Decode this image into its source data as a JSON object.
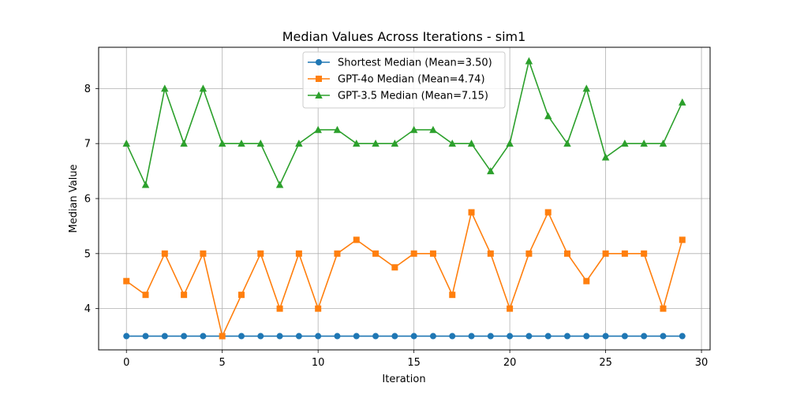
{
  "chart_data": {
    "type": "line",
    "title": "Median Values Across Iterations - sim1",
    "xlabel": "Iteration",
    "ylabel": "Median Value",
    "xlim": [
      -1.45,
      30.45
    ],
    "ylim": [
      3.25,
      8.75
    ],
    "xticks": [
      0,
      5,
      10,
      15,
      20,
      25,
      30
    ],
    "yticks": [
      4,
      5,
      6,
      7,
      8
    ],
    "grid": true,
    "legend_position": "top-center",
    "x": [
      0,
      1,
      2,
      3,
      4,
      5,
      6,
      7,
      8,
      9,
      10,
      11,
      12,
      13,
      14,
      15,
      16,
      17,
      18,
      19,
      20,
      21,
      22,
      23,
      24,
      25,
      26,
      27,
      28,
      29
    ],
    "series": [
      {
        "name": "Shortest Median (Mean=3.50)",
        "color": "#1f77b4",
        "marker": "circle",
        "values": [
          3.5,
          3.5,
          3.5,
          3.5,
          3.5,
          3.5,
          3.5,
          3.5,
          3.5,
          3.5,
          3.5,
          3.5,
          3.5,
          3.5,
          3.5,
          3.5,
          3.5,
          3.5,
          3.5,
          3.5,
          3.5,
          3.5,
          3.5,
          3.5,
          3.5,
          3.5,
          3.5,
          3.5,
          3.5,
          3.5
        ]
      },
      {
        "name": "GPT-4o Median (Mean=4.74)",
        "color": "#ff7f0e",
        "marker": "square",
        "values": [
          4.5,
          4.25,
          5.0,
          4.25,
          5.0,
          3.5,
          4.25,
          5.0,
          4.0,
          5.0,
          4.0,
          5.0,
          5.25,
          5.0,
          4.75,
          5.0,
          5.0,
          4.25,
          5.75,
          5.0,
          4.0,
          5.0,
          5.75,
          5.0,
          4.5,
          5.0,
          5.0,
          5.0,
          4.0,
          5.25
        ]
      },
      {
        "name": "GPT-3.5 Median (Mean=7.15)",
        "color": "#2ca02c",
        "marker": "triangle",
        "values": [
          7.0,
          6.25,
          8.0,
          7.0,
          8.0,
          7.0,
          7.0,
          7.0,
          6.25,
          7.0,
          7.25,
          7.25,
          7.0,
          7.0,
          7.0,
          7.25,
          7.25,
          7.0,
          7.0,
          6.5,
          7.0,
          8.5,
          7.5,
          7.0,
          8.0,
          6.75,
          7.0,
          7.0,
          7.0,
          7.75
        ]
      }
    ]
  }
}
